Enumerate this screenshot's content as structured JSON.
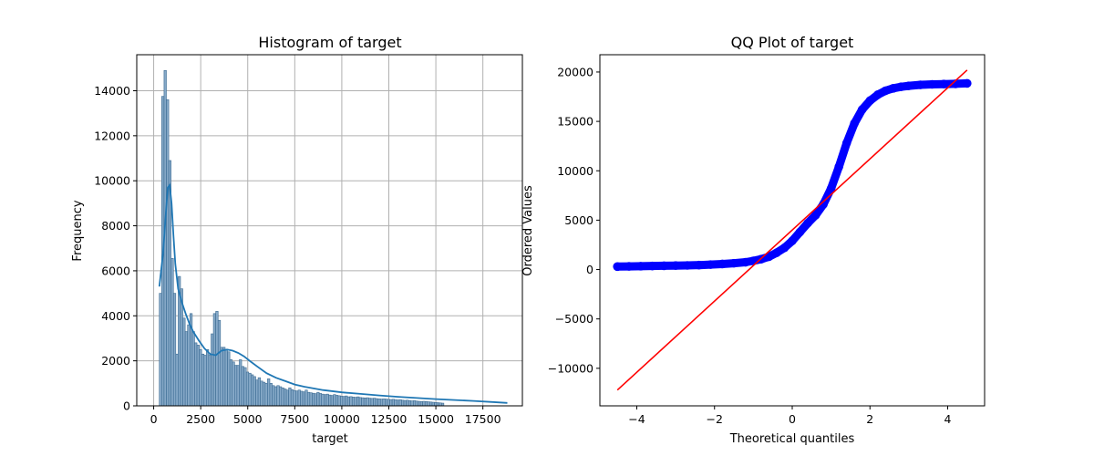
{
  "chart_data": [
    {
      "type": "bar",
      "title": "Histogram of target",
      "xlabel": "target",
      "ylabel": "Frequency",
      "xlim": [
        -900,
        19600
      ],
      "ylim": [
        0,
        15600
      ],
      "grid": true,
      "xticks": [
        0,
        2500,
        5000,
        7500,
        10000,
        12500,
        15000,
        17500
      ],
      "yticks": [
        0,
        2000,
        4000,
        6000,
        8000,
        10000,
        12000,
        14000
      ],
      "bin_start": 300,
      "bin_width": 125,
      "values": [
        5000,
        13750,
        14900,
        13600,
        10900,
        6550,
        5000,
        2300,
        5750,
        5200,
        3900,
        3300,
        3600,
        4100,
        3300,
        2800,
        2700,
        2500,
        2300,
        2250,
        2500,
        2250,
        3200,
        4100,
        4200,
        3800,
        2600,
        2600,
        2500,
        2400,
        2050,
        1950,
        1800,
        1800,
        2050,
        1750,
        1700,
        1500,
        1450,
        1380,
        1300,
        1150,
        1250,
        1100,
        1050,
        1000,
        1200,
        1000,
        900,
        850,
        900,
        850,
        800,
        750,
        700,
        800,
        720,
        680,
        660,
        700,
        650,
        620,
        700,
        600,
        580,
        560,
        540,
        600,
        550,
        520,
        500,
        520,
        480,
        460,
        500,
        470,
        450,
        430,
        420,
        440,
        400,
        410,
        390,
        380,
        400,
        370,
        360,
        350,
        360,
        340,
        330,
        340,
        320,
        310,
        300,
        310,
        300,
        290,
        280,
        290,
        270,
        260,
        270,
        250,
        240,
        250,
        230,
        220,
        230,
        210,
        200,
        190,
        200,
        190,
        180,
        170,
        160,
        150,
        140,
        130,
        120
      ],
      "kde": {
        "x": [
          300,
          500,
          650,
          750,
          850,
          950,
          1050,
          1150,
          1300,
          1500,
          1700,
          1900,
          2100,
          2400,
          2700,
          3000,
          3300,
          3600,
          3900,
          4200,
          4500,
          4800,
          5100,
          5500,
          6000,
          6500,
          7000,
          7500,
          8000,
          9000,
          10000,
          11000,
          12000,
          13000,
          14000,
          15000,
          16000,
          17000,
          18000,
          18800
        ],
        "y": [
          5300,
          6800,
          8600,
          9700,
          9800,
          9000,
          7600,
          6300,
          5200,
          4600,
          4100,
          3650,
          3300,
          2900,
          2550,
          2300,
          2250,
          2450,
          2500,
          2450,
          2350,
          2200,
          2000,
          1750,
          1450,
          1250,
          1100,
          950,
          850,
          700,
          600,
          530,
          460,
          400,
          350,
          300,
          260,
          220,
          170,
          130
        ]
      },
      "bar_color": "#85a8c7",
      "bar_edge_color": "#3a6a92",
      "line_color": "#1f77b4"
    },
    {
      "type": "scatter",
      "title": "QQ Plot of target",
      "xlabel": "Theoretical quantiles",
      "ylabel": "Ordered Values",
      "xlim": [
        -4.95,
        4.95
      ],
      "ylim": [
        -13800,
        21750
      ],
      "grid": false,
      "xticks": [
        -4,
        -2,
        0,
        2,
        4
      ],
      "yticks": [
        -10000,
        -5000,
        0,
        5000,
        10000,
        15000,
        20000
      ],
      "points": {
        "x": [
          -4.5,
          -4.2,
          -3.9,
          -3.6,
          -3.3,
          -3.0,
          -2.7,
          -2.4,
          -2.1,
          -1.8,
          -1.5,
          -1.2,
          -1.0,
          -0.8,
          -0.6,
          -0.4,
          -0.2,
          0.0,
          0.2,
          0.4,
          0.6,
          0.8,
          1.0,
          1.2,
          1.4,
          1.6,
          1.8,
          2.0,
          2.2,
          2.4,
          2.6,
          2.8,
          3.0,
          3.3,
          3.6,
          3.9,
          4.2,
          4.5
        ],
        "y": [
          300,
          320,
          340,
          360,
          380,
          400,
          420,
          450,
          500,
          560,
          640,
          740,
          880,
          1050,
          1300,
          1700,
          2200,
          2900,
          3800,
          4700,
          5500,
          6600,
          8200,
          10400,
          12800,
          14800,
          16200,
          17100,
          17700,
          18100,
          18350,
          18500,
          18600,
          18700,
          18750,
          18780,
          18800,
          18850
        ]
      },
      "fit_line": {
        "x": [
          -4.5,
          4.5
        ],
        "y": [
          -12200,
          20200
        ]
      },
      "point_color": "#0000ff",
      "line_color": "#ff0000"
    }
  ]
}
